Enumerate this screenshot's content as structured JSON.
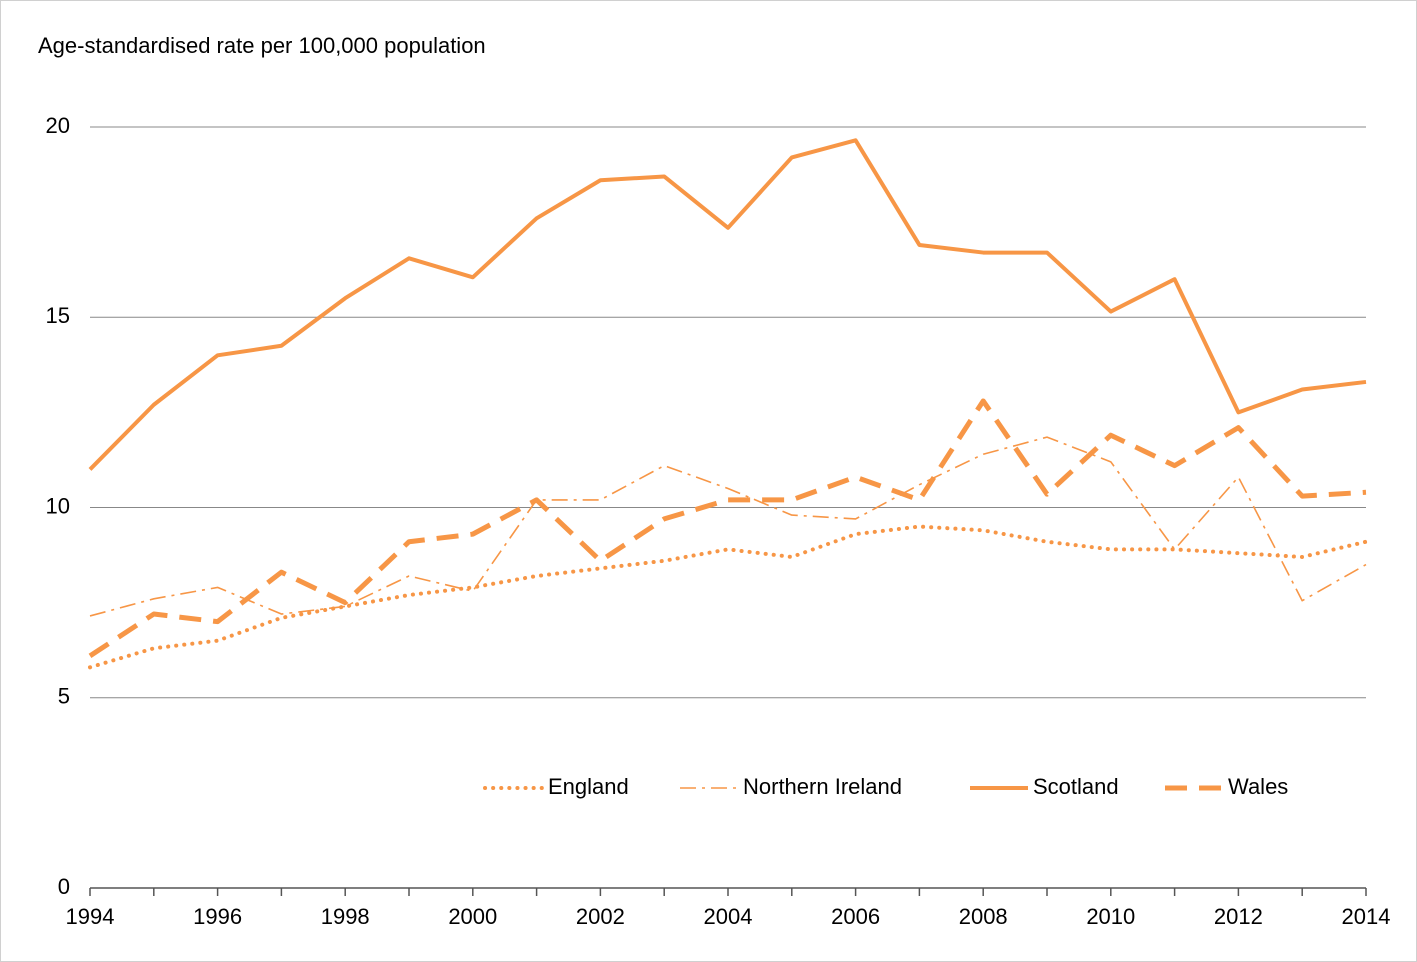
{
  "chart_data": {
    "type": "line",
    "y_label": "Age-standardised rate per 100,000 population",
    "x": [
      1994,
      1995,
      1996,
      1997,
      1998,
      1999,
      2000,
      2001,
      2002,
      2003,
      2004,
      2005,
      2006,
      2007,
      2008,
      2009,
      2010,
      2011,
      2012,
      2013,
      2014
    ],
    "xlim": [
      1994,
      2014
    ],
    "xticks": [
      1994,
      1996,
      1998,
      2000,
      2002,
      2004,
      2006,
      2008,
      2010,
      2012,
      2014
    ],
    "ylim": [
      0,
      20
    ],
    "yticks": [
      0,
      5,
      10,
      15,
      20
    ],
    "grid": true,
    "legend": "bottom-inside",
    "series": [
      {
        "name": "England",
        "color": "#f79646",
        "dash": "dotted",
        "values": [
          5.8,
          6.3,
          6.5,
          7.1,
          7.4,
          7.7,
          7.9,
          8.2,
          8.4,
          8.6,
          8.9,
          8.7,
          9.3,
          9.5,
          9.4,
          9.1,
          8.9,
          8.9,
          8.8,
          8.7,
          9.1
        ]
      },
      {
        "name": "Northern Ireland",
        "color": "#f79646",
        "dash": "dash-dot",
        "values": [
          7.15,
          7.6,
          7.9,
          7.2,
          7.4,
          8.2,
          7.8,
          10.2,
          10.2,
          11.1,
          10.5,
          9.8,
          9.7,
          10.6,
          11.4,
          11.85,
          11.2,
          8.9,
          10.8,
          7.55,
          8.5
        ]
      },
      {
        "name": "Scotland",
        "color": "#f79646",
        "dash": "solid",
        "values": [
          11.0,
          12.7,
          14.0,
          14.25,
          15.5,
          16.55,
          16.05,
          17.6,
          18.6,
          18.7,
          17.35,
          19.2,
          19.65,
          16.9,
          16.7,
          16.7,
          15.15,
          16.0,
          12.5,
          13.1,
          13.3
        ]
      },
      {
        "name": "Wales",
        "color": "#f79646",
        "dash": "dashed",
        "values": [
          6.1,
          7.2,
          7.0,
          8.3,
          7.5,
          9.1,
          9.3,
          10.2,
          8.6,
          9.7,
          10.2,
          10.2,
          10.8,
          10.2,
          12.8,
          10.35,
          11.9,
          11.1,
          12.1,
          10.3,
          10.4
        ]
      }
    ]
  }
}
